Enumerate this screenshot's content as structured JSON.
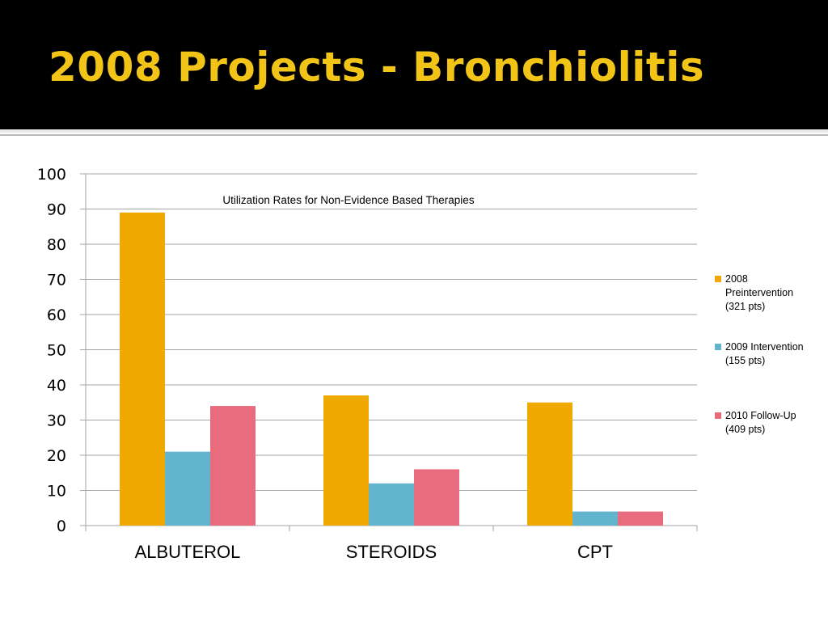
{
  "slide": {
    "title": "2008 Projects - Bronchiolitis"
  },
  "chart_data": {
    "type": "bar",
    "title": "Utilization Rates for Non-Evidence Based Therapies",
    "xlabel": "",
    "ylabel": "",
    "categories": [
      "ALBUTEROL",
      "STEROIDS",
      "CPT"
    ],
    "ylim": [
      0,
      100
    ],
    "yticks": [
      0,
      10,
      20,
      30,
      40,
      50,
      60,
      70,
      80,
      90,
      100
    ],
    "grid": true,
    "legend_position": "right",
    "series": [
      {
        "name": "2008 Preintervention (321 pts)",
        "legend_lines": [
          "2008",
          "Preintervention",
          "(321 pts)"
        ],
        "color": "#f0a900",
        "values": [
          89,
          37,
          35
        ]
      },
      {
        "name": "2009 Intervention (155 pts)",
        "legend_lines": [
          "2009 Intervention",
          "(155 pts)"
        ],
        "color": "#62b5cc",
        "values": [
          21,
          12,
          4
        ]
      },
      {
        "name": "2010 Follow-Up (409 pts)",
        "legend_lines": [
          "2010 Follow-Up",
          "(409 pts)"
        ],
        "color": "#e86c7e",
        "values": [
          34,
          16,
          4
        ]
      }
    ]
  }
}
